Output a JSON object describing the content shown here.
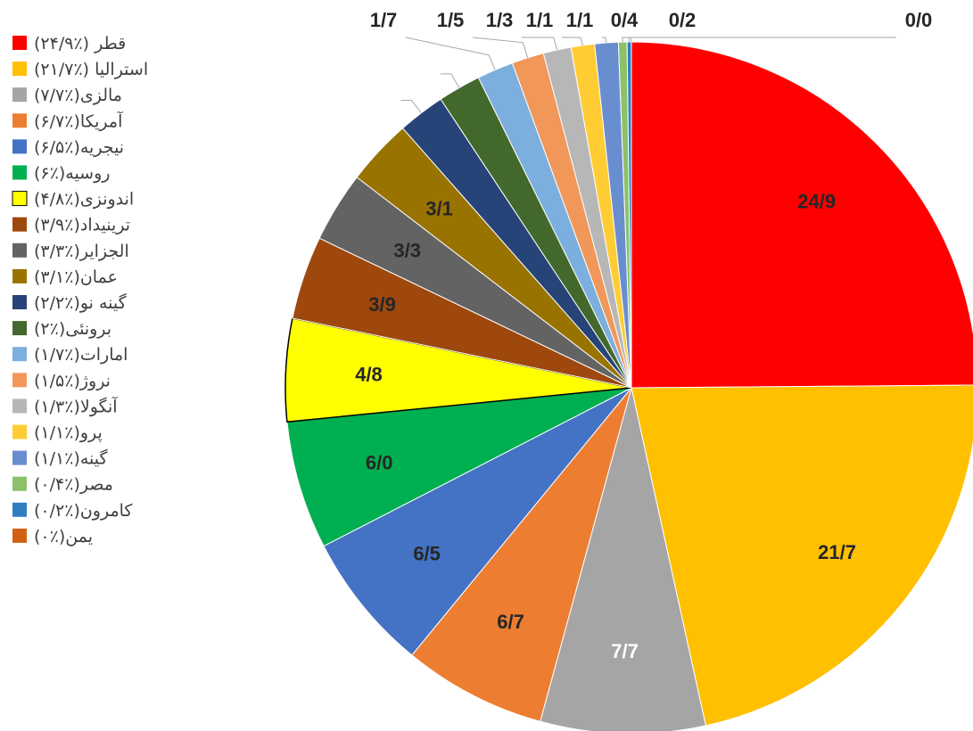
{
  "chart_data": {
    "type": "pie",
    "categories": [
      "قطر (٪۲۴/۹)",
      "استرالیا (٪۲۱/۷)",
      "مالزی(٪۷/۷)",
      "آمریکا(٪۶/۷)",
      "نیجریه(٪۶/۵)",
      "روسیه(٪۶)",
      "اندونزی(٪۴/۸)",
      "ترینیداد(٪۳/۹)",
      "الجزایر(٪۳/۳)",
      "عمان(٪۳/۱)",
      "گینه نو(٪۲/۲)",
      "برونئی(٪۲)",
      "امارات(٪۱/۷)",
      "نروژ(٪۱/۵)",
      "آنگولا(٪۱/۳)",
      "پرو(٪۱/۱)",
      "گینه(٪۱/۱)",
      "مصر(٪۰/۴)",
      "کامرون(٪۰/۲)",
      "یمن(٪۰)"
    ],
    "values": [
      24.9,
      21.7,
      7.7,
      6.7,
      6.5,
      6.0,
      4.8,
      3.9,
      3.3,
      3.1,
      2.2,
      2.0,
      1.7,
      1.5,
      1.3,
      1.1,
      1.1,
      0.4,
      0.2,
      0.0
    ],
    "value_labels": [
      "24/9",
      "21/7",
      "7/7",
      "6/7",
      "6/5",
      "6/0",
      "4/8",
      "3/9",
      "3/3",
      "3/1",
      null,
      null,
      "1/7",
      "1/5",
      "1/3",
      "1/1",
      "1/1",
      "0/4",
      "0/2",
      "0/0"
    ],
    "colors": [
      "#ff0000",
      "#ffc000",
      "#a5a5a5",
      "#ed7d31",
      "#4472c4",
      "#00b050",
      "#ffff00",
      "#9e480e",
      "#636363",
      "#997300",
      "#264478",
      "#43682b",
      "#7cafdd",
      "#f1975a",
      "#b7b7b7",
      "#ffcd33",
      "#698ed0",
      "#8cc168",
      "#327dc2",
      "#d26012"
    ],
    "legend": "left"
  }
}
